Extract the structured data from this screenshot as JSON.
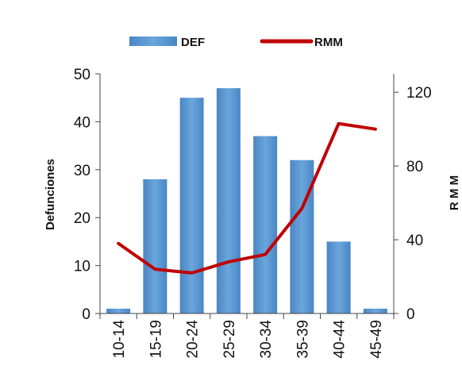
{
  "chart_data": {
    "type": "bar",
    "categories": [
      "10-14",
      "15-19",
      "20-24",
      "25-29",
      "30-34",
      "35-39",
      "40-44",
      "45-49"
    ],
    "series": [
      {
        "name": "DEF",
        "type": "bar",
        "axis": "left",
        "values": [
          1,
          28,
          45,
          47,
          37,
          32,
          15,
          1
        ]
      },
      {
        "name": "RMM",
        "type": "line",
        "axis": "right",
        "values": [
          38,
          24,
          22,
          28,
          32,
          57,
          103,
          100
        ]
      }
    ],
    "ylabel": "Defunciones",
    "y2label": "R M M",
    "ylim": [
      0,
      50
    ],
    "y2lim": [
      0,
      130
    ],
    "yticks": [
      "0",
      "10",
      "20",
      "30",
      "40",
      "50"
    ],
    "y2ticks": [
      "0",
      "40",
      "80",
      "120"
    ],
    "y2tick_values": [
      0,
      40,
      80,
      120
    ],
    "legend_position": "top",
    "grid": false,
    "colors": {
      "bar": "#5b9bd5",
      "bar_dark": "#4a86c0",
      "line": "#c00000"
    }
  }
}
